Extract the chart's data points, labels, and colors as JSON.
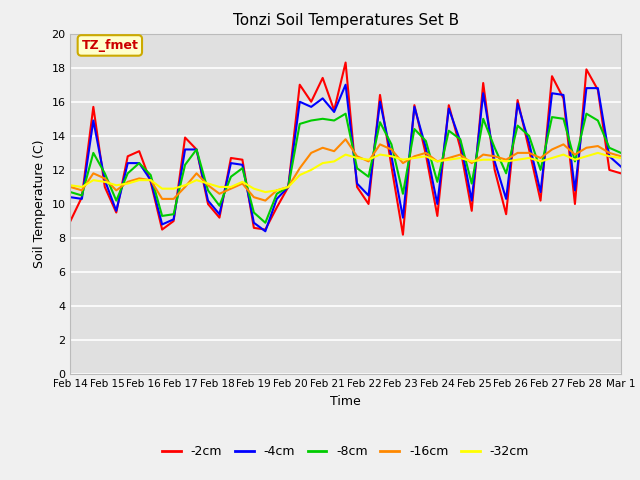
{
  "title": "Tonzi Soil Temperatures Set B",
  "xlabel": "Time",
  "ylabel": "Soil Temperature (C)",
  "ylim": [
    0,
    20
  ],
  "yticks": [
    0,
    2,
    4,
    6,
    8,
    10,
    12,
    14,
    16,
    18,
    20
  ],
  "fig_facecolor": "#f0f0f0",
  "bg_color": "#e0e0e0",
  "annotation_text": "TZ_fmet",
  "annotation_color": "#cc0000",
  "annotation_bg": "#ffffcc",
  "annotation_border": "#ccaa00",
  "legend_entries": [
    "-2cm",
    "-4cm",
    "-8cm",
    "-16cm",
    "-32cm"
  ],
  "line_colors": [
    "#ff0000",
    "#0000ff",
    "#00cc00",
    "#ff8800",
    "#ffff00"
  ],
  "line_width": 1.5,
  "x_tick_labels": [
    "Feb 14",
    "Feb 15",
    "Feb 16",
    "Feb 17",
    "Feb 18",
    "Feb 19",
    "Feb 20",
    "Feb 21",
    "Feb 22",
    "Feb 23",
    "Feb 24",
    "Feb 25",
    "Feb 26",
    "Feb 27",
    "Feb 28",
    "Mar 1"
  ],
  "series": {
    "2cm": [
      9.0,
      10.4,
      15.7,
      11.0,
      9.5,
      12.8,
      13.1,
      11.3,
      8.5,
      9.0,
      13.9,
      13.2,
      10.0,
      9.2,
      12.7,
      12.6,
      8.6,
      8.5,
      9.8,
      11.0,
      17.0,
      16.0,
      17.4,
      15.5,
      18.3,
      11.0,
      10.0,
      16.4,
      12.2,
      8.2,
      15.8,
      12.9,
      9.3,
      15.8,
      13.3,
      9.6,
      17.1,
      12.0,
      9.4,
      16.1,
      13.2,
      10.2,
      17.5,
      16.2,
      10.0,
      17.9,
      16.7,
      12.0,
      11.8
    ],
    "4cm": [
      10.4,
      10.3,
      14.9,
      11.4,
      9.6,
      12.4,
      12.4,
      11.4,
      8.8,
      9.1,
      13.2,
      13.2,
      10.2,
      9.4,
      12.4,
      12.3,
      8.9,
      8.4,
      10.3,
      11.0,
      16.0,
      15.7,
      16.2,
      15.4,
      17.0,
      11.2,
      10.5,
      16.0,
      12.8,
      9.2,
      15.7,
      13.3,
      10.0,
      15.6,
      13.7,
      10.2,
      16.5,
      12.5,
      10.3,
      15.9,
      13.6,
      10.7,
      16.5,
      16.4,
      10.8,
      16.8,
      16.8,
      12.8,
      12.2
    ],
    "8cm": [
      10.7,
      10.5,
      13.0,
      11.8,
      10.2,
      11.8,
      12.4,
      11.7,
      9.3,
      9.4,
      12.3,
      13.2,
      10.8,
      9.9,
      11.6,
      12.1,
      9.5,
      8.9,
      10.6,
      11.0,
      14.7,
      14.9,
      15.0,
      14.9,
      15.3,
      12.1,
      11.6,
      14.8,
      13.5,
      10.6,
      14.4,
      13.7,
      11.3,
      14.3,
      13.8,
      11.2,
      15.0,
      13.3,
      11.8,
      14.6,
      14.0,
      12.0,
      15.1,
      15.0,
      12.5,
      15.3,
      14.9,
      13.3,
      13.0
    ],
    "16cm": [
      11.0,
      10.8,
      11.8,
      11.5,
      10.8,
      11.3,
      11.5,
      11.4,
      10.3,
      10.3,
      11.0,
      11.8,
      11.1,
      10.6,
      10.9,
      11.2,
      10.4,
      10.2,
      10.8,
      11.0,
      12.1,
      13.0,
      13.3,
      13.1,
      13.8,
      12.8,
      12.5,
      13.5,
      13.2,
      12.4,
      12.8,
      13.0,
      12.5,
      12.7,
      12.9,
      12.4,
      12.9,
      12.8,
      12.6,
      13.0,
      13.0,
      12.7,
      13.2,
      13.5,
      12.9,
      13.3,
      13.4,
      13.0,
      12.8
    ],
    "32cm": [
      11.1,
      11.0,
      11.4,
      11.3,
      11.1,
      11.2,
      11.4,
      11.4,
      10.9,
      10.9,
      11.1,
      11.4,
      11.2,
      11.0,
      11.0,
      11.3,
      10.9,
      10.7,
      10.8,
      11.0,
      11.7,
      12.0,
      12.4,
      12.5,
      12.9,
      12.7,
      12.6,
      12.9,
      12.8,
      12.6,
      12.7,
      12.8,
      12.5,
      12.6,
      12.7,
      12.5,
      12.6,
      12.6,
      12.5,
      12.6,
      12.7,
      12.5,
      12.7,
      12.9,
      12.6,
      12.8,
      13.0,
      12.8,
      12.7
    ]
  }
}
